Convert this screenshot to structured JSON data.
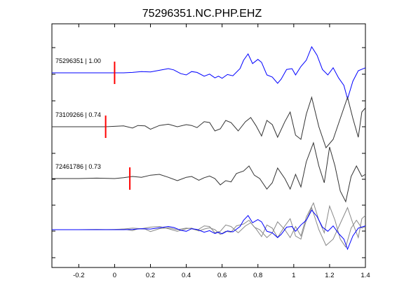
{
  "chart_data": {
    "type": "line",
    "title": "75296351.NC.PHP.EHZ",
    "xlabel": "",
    "ylabel": "",
    "xlim": [
      -0.35,
      1.4
    ],
    "xticks": [
      -0.2,
      0,
      0.2,
      0.4,
      0.6,
      0.8,
      1,
      1.2,
      1.4
    ],
    "xtick_labels": [
      "-0.2",
      "0",
      "0.2",
      "0.4",
      "0.6",
      "0.8",
      "1",
      "1.2",
      "1.4"
    ],
    "grid": false,
    "colors": {
      "reference": "#0000ff",
      "other": "#333333",
      "overlay_other": "#888888",
      "pick": "#ff0000"
    },
    "traces": [
      {
        "label": "75296351 | 1.00",
        "color": "#0000ff",
        "pick_time": 0.0,
        "points": [
          [
            -0.35,
            0
          ],
          [
            0,
            0
          ],
          [
            0.05,
            0
          ],
          [
            0.1,
            0.01
          ],
          [
            0.15,
            0.03
          ],
          [
            0.2,
            0.02
          ],
          [
            0.25,
            0.06
          ],
          [
            0.3,
            0.1
          ],
          [
            0.33,
            0.07
          ],
          [
            0.37,
            -0.02
          ],
          [
            0.4,
            -0.05
          ],
          [
            0.43,
            0.03
          ],
          [
            0.46,
            0.01
          ],
          [
            0.5,
            -0.08
          ],
          [
            0.53,
            -0.03
          ],
          [
            0.56,
            -0.12
          ],
          [
            0.58,
            -0.08
          ],
          [
            0.6,
            -0.13
          ],
          [
            0.63,
            -0.04
          ],
          [
            0.66,
            -0.07
          ],
          [
            0.7,
            0.1
          ],
          [
            0.72,
            0.3
          ],
          [
            0.745,
            0.45
          ],
          [
            0.77,
            0.22
          ],
          [
            0.8,
            0.32
          ],
          [
            0.82,
            0.25
          ],
          [
            0.85,
            -0.05
          ],
          [
            0.88,
            -0.1
          ],
          [
            0.91,
            -0.25
          ],
          [
            0.93,
            -0.15
          ],
          [
            0.96,
            0.08
          ],
          [
            0.99,
            0.1
          ],
          [
            1.01,
            -0.05
          ],
          [
            1.04,
            0.15
          ],
          [
            1.07,
            0.3
          ],
          [
            1.1,
            0.62
          ],
          [
            1.13,
            0.42
          ],
          [
            1.16,
            0.08
          ],
          [
            1.19,
            -0.05
          ],
          [
            1.22,
            0.12
          ],
          [
            1.25,
            -0.12
          ],
          [
            1.28,
            -0.3
          ],
          [
            1.3,
            -0.62
          ],
          [
            1.33,
            -0.2
          ],
          [
            1.36,
            0.05
          ],
          [
            1.4,
            0.12
          ]
        ]
      },
      {
        "label": "73109266 | 0.74",
        "color": "#333333",
        "pick_time": -0.05,
        "points": [
          [
            -0.35,
            0
          ],
          [
            -0.05,
            0
          ],
          [
            0,
            0.01
          ],
          [
            0.05,
            0.02
          ],
          [
            0.1,
            -0.03
          ],
          [
            0.13,
            0.03
          ],
          [
            0.17,
            0.02
          ],
          [
            0.2,
            -0.06
          ],
          [
            0.25,
            0.03
          ],
          [
            0.3,
            0.06
          ],
          [
            0.35,
            0.0
          ],
          [
            0.4,
            0.05
          ],
          [
            0.43,
            0.03
          ],
          [
            0.46,
            -0.02
          ],
          [
            0.5,
            0.12
          ],
          [
            0.53,
            0.1
          ],
          [
            0.56,
            -0.1
          ],
          [
            0.59,
            -0.05
          ],
          [
            0.62,
            0.15
          ],
          [
            0.65,
            0.1
          ],
          [
            0.69,
            -0.1
          ],
          [
            0.73,
            0.12
          ],
          [
            0.76,
            0.22
          ],
          [
            0.79,
            0.02
          ],
          [
            0.82,
            -0.22
          ],
          [
            0.85,
            0.15
          ],
          [
            0.88,
            0.05
          ],
          [
            0.91,
            -0.25
          ],
          [
            0.95,
            0.12
          ],
          [
            0.98,
            0.35
          ],
          [
            1.01,
            -0.2
          ],
          [
            1.04,
            -0.3
          ],
          [
            1.07,
            0.3
          ],
          [
            1.1,
            0.7
          ],
          [
            1.14,
            0.0
          ],
          [
            1.18,
            -0.5
          ],
          [
            1.22,
            -0.3
          ],
          [
            1.26,
            0.2
          ],
          [
            1.3,
            0.7
          ],
          [
            1.33,
            0.2
          ],
          [
            1.36,
            -0.25
          ],
          [
            1.38,
            0.35
          ],
          [
            1.4,
            0.45
          ]
        ]
      },
      {
        "label": "72461786 | 0.73",
        "color": "#333333",
        "pick_time": 0.085,
        "points": [
          [
            -0.35,
            0
          ],
          [
            -0.2,
            0
          ],
          [
            -0.1,
            0.01
          ],
          [
            0,
            0.0
          ],
          [
            0.05,
            0.02
          ],
          [
            0.1,
            0.05
          ],
          [
            0.15,
            0.03
          ],
          [
            0.2,
            0.08
          ],
          [
            0.25,
            0.1
          ],
          [
            0.3,
            0.03
          ],
          [
            0.35,
            -0.05
          ],
          [
            0.4,
            0.03
          ],
          [
            0.43,
            0.05
          ],
          [
            0.47,
            -0.04
          ],
          [
            0.5,
            0.02
          ],
          [
            0.53,
            0.06
          ],
          [
            0.56,
            0.0
          ],
          [
            0.59,
            -0.15
          ],
          [
            0.62,
            -0.05
          ],
          [
            0.65,
            -0.08
          ],
          [
            0.68,
            0.12
          ],
          [
            0.72,
            0.18
          ],
          [
            0.75,
            0.3
          ],
          [
            0.78,
            0.08
          ],
          [
            0.81,
            0.0
          ],
          [
            0.85,
            -0.25
          ],
          [
            0.88,
            -0.1
          ],
          [
            0.91,
            0.25
          ],
          [
            0.95,
            0.0
          ],
          [
            0.98,
            -0.25
          ],
          [
            1.01,
            0.1
          ],
          [
            1.04,
            -0.2
          ],
          [
            1.07,
            0.4
          ],
          [
            1.11,
            0.85
          ],
          [
            1.14,
            0.3
          ],
          [
            1.17,
            -0.1
          ],
          [
            1.2,
            0.75
          ],
          [
            1.23,
            0.3
          ],
          [
            1.26,
            -0.3
          ],
          [
            1.29,
            -0.55
          ],
          [
            1.32,
            0.05
          ],
          [
            1.35,
            0.3
          ],
          [
            1.38,
            0.05
          ],
          [
            1.4,
            0.1
          ]
        ]
      }
    ]
  }
}
